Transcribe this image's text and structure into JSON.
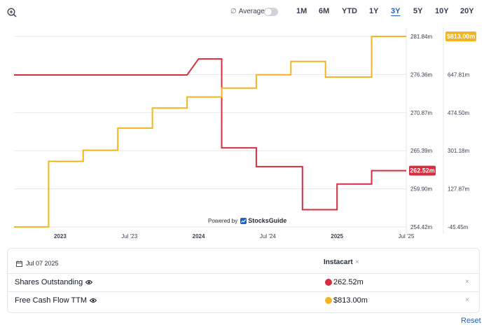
{
  "toolbar": {
    "average_symbol": "∅",
    "average_label": "Average",
    "average_enabled": false,
    "ranges": [
      "1M",
      "6M",
      "YTD",
      "1Y",
      "3Y",
      "5Y",
      "10Y",
      "20Y"
    ],
    "active_range": "3Y"
  },
  "chart_data": {
    "type": "line",
    "x_tick_labels": [
      "2023",
      "Jul '23",
      "2024",
      "Jul '24",
      "2025",
      "Jul '25"
    ],
    "left_axis_ticks": [
      "281.84m",
      "276.36m",
      "270.87m",
      "265.39m",
      "259.90m",
      "254.42m"
    ],
    "right_axis_ticks": [
      "$813.00m",
      "647.81m",
      "474.50m",
      "301.18m",
      "127.87m",
      "-45.45m"
    ],
    "left_axis_range": [
      254.42,
      281.84
    ],
    "right_axis_range": [
      -45.45,
      813.0
    ],
    "grid": true,
    "series": [
      {
        "name": "Shares Outstanding",
        "color": "#d92d3f",
        "axis": "left",
        "end_label": "262.52m",
        "points": [
          [
            "2022-09",
            276.3
          ],
          [
            "2023-09",
            276.3
          ],
          [
            "2023-12",
            276.3
          ],
          [
            "2024-01",
            278.6
          ],
          [
            "2024-03",
            278.6
          ],
          [
            "2024-03",
            265.8
          ],
          [
            "2024-06",
            265.8
          ],
          [
            "2024-06",
            263.1
          ],
          [
            "2024-10",
            263.1
          ],
          [
            "2024-10",
            256.9
          ],
          [
            "2025-01",
            256.9
          ],
          [
            "2025-01",
            260.6
          ],
          [
            "2025-04",
            260.6
          ],
          [
            "2025-04",
            262.52
          ],
          [
            "2025-07",
            262.52
          ]
        ]
      },
      {
        "name": "Free Cash Flow TTM",
        "color": "#f4b41f",
        "axis": "right",
        "end_label": "$813.00m",
        "points": [
          [
            "2022-09",
            -45.45
          ],
          [
            "2022-12",
            -45.45
          ],
          [
            "2022-12",
            250
          ],
          [
            "2023-03",
            250
          ],
          [
            "2023-03",
            300
          ],
          [
            "2023-06",
            300
          ],
          [
            "2023-06",
            400
          ],
          [
            "2023-09",
            400
          ],
          [
            "2023-09",
            490
          ],
          [
            "2023-12",
            490
          ],
          [
            "2023-12",
            540
          ],
          [
            "2024-03",
            540
          ],
          [
            "2024-03",
            580
          ],
          [
            "2024-06",
            580
          ],
          [
            "2024-06",
            640
          ],
          [
            "2024-09",
            640
          ],
          [
            "2024-09",
            700
          ],
          [
            "2024-12",
            700
          ],
          [
            "2024-12",
            630
          ],
          [
            "2025-04",
            630
          ],
          [
            "2025-04",
            813
          ],
          [
            "2025-07",
            813
          ]
        ]
      }
    ],
    "footer": {
      "powered_by": "Powered by",
      "brand": "StocksGuide"
    }
  },
  "details": {
    "date": "Jul 07 2025",
    "company": "Instacart",
    "remove_symbol": "×",
    "rows": [
      {
        "label": "Shares Outstanding",
        "value": "262.52m",
        "color": "#d92d3f"
      },
      {
        "label": "Free Cash Flow TTM",
        "value": "$813.00m",
        "color": "#f4b41f"
      }
    ]
  },
  "reset_label": "Reset"
}
